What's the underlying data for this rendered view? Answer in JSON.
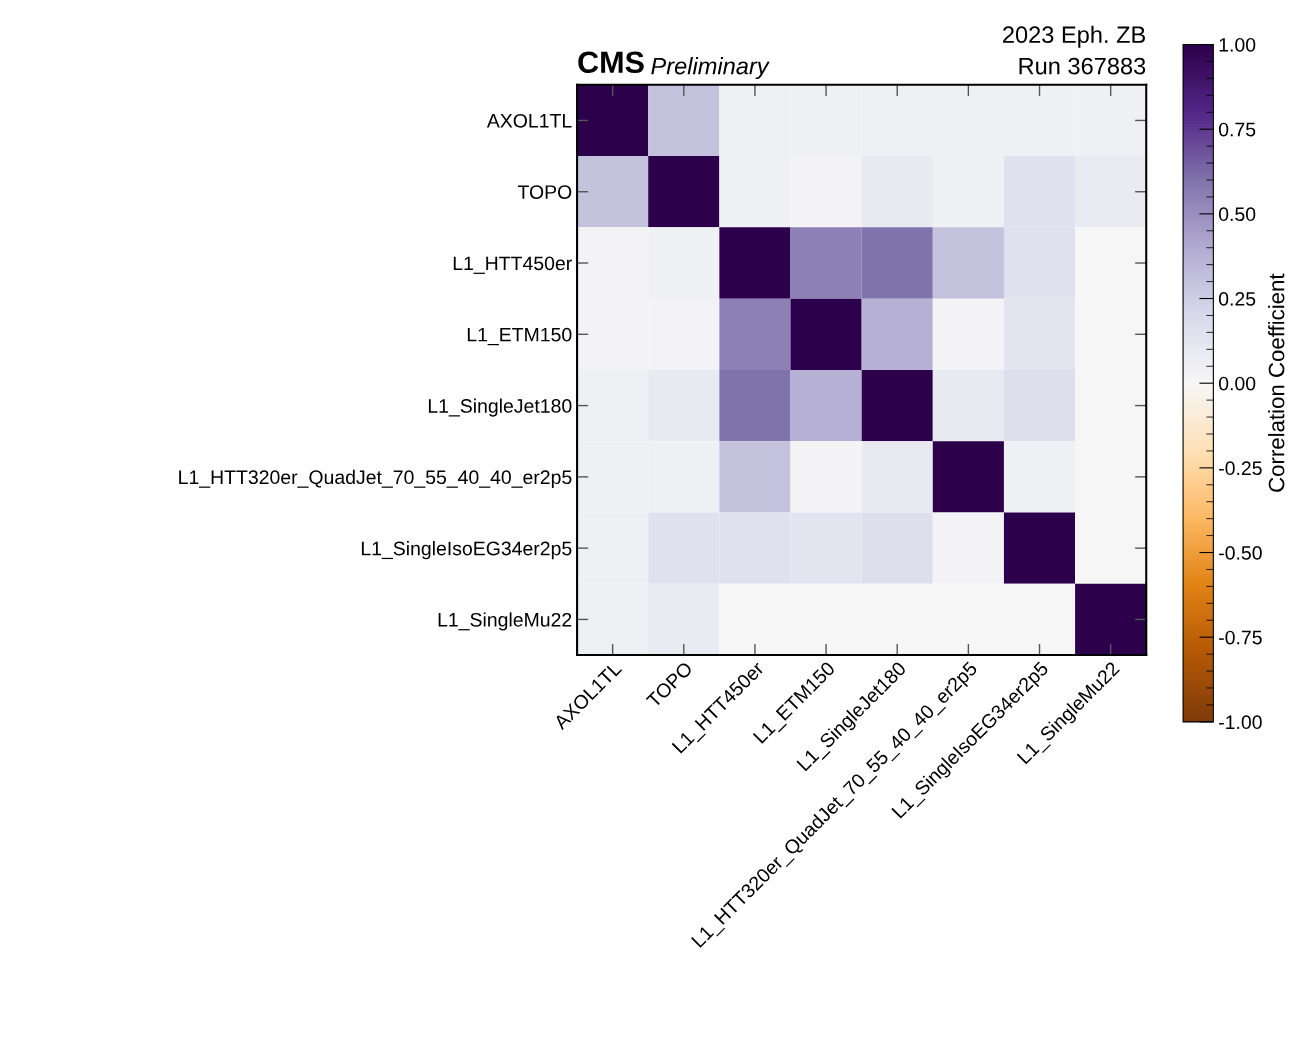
{
  "chart_data": {
    "type": "heatmap",
    "title": "CMS",
    "subtitle": "Preliminary",
    "annotations": [
      "2023 Eph. ZB",
      "Run 367883"
    ],
    "clabel": "Correlation Coefficient",
    "categories": [
      "AXOL1TL",
      "TOPO",
      "L1_HTT450er",
      "L1_ETM150",
      "L1_SingleJet180",
      "L1_HTT320er_QuadJet_70_55_40_40_er2p5",
      "L1_SingleIsoEG34er2p5",
      "L1_SingleMu22"
    ],
    "y_categories": [
      "AXOL1TL",
      "TOPO",
      "L1_HTT450er",
      "L1_ETM150",
      "L1_SingleJet180",
      "L1_HTT320er_QuadJet_70_55_40_40_er2p5",
      "L1_SingleIsoEG34er2p5",
      "L1_SingleMu22"
    ],
    "cells": [
      [
        1,
        0.3,
        0.05,
        0.05,
        0.05,
        0.05,
        0.05,
        0.05
      ],
      [
        0.3,
        1,
        0.05,
        0.03,
        0.1,
        0.05,
        0.15,
        0.08
      ],
      [
        0.03,
        0.05,
        1,
        0.55,
        0.6,
        0.3,
        0.15,
        0.0
      ],
      [
        0.03,
        0.03,
        0.55,
        1,
        0.38,
        0.02,
        0.13,
        0.0
      ],
      [
        0.05,
        0.1,
        0.6,
        0.38,
        1,
        0.1,
        0.17,
        0.0
      ],
      [
        0.05,
        0.05,
        0.3,
        0.02,
        0.1,
        1,
        0.05,
        0.0
      ],
      [
        0.05,
        0.15,
        0.15,
        0.13,
        0.17,
        0.03,
        1,
        0.0
      ],
      [
        0.05,
        0.08,
        0.0,
        0.0,
        0.0,
        0.0,
        0.0,
        1
      ]
    ],
    "clim": [
      -1,
      1
    ],
    "cticks": [
      {
        "value": -1,
        "label": "-1.00"
      },
      {
        "value": -0.75,
        "label": "-0.75"
      },
      {
        "value": -0.5,
        "label": "-0.50"
      },
      {
        "value": -0.25,
        "label": "-0.25"
      },
      {
        "value": 0,
        "label": "0.00"
      },
      {
        "value": 0.25,
        "label": "0.25"
      },
      {
        "value": 0.5,
        "label": "0.50"
      },
      {
        "value": 0.75,
        "label": "0.75"
      },
      {
        "value": 1,
        "label": "1.00"
      }
    ]
  }
}
